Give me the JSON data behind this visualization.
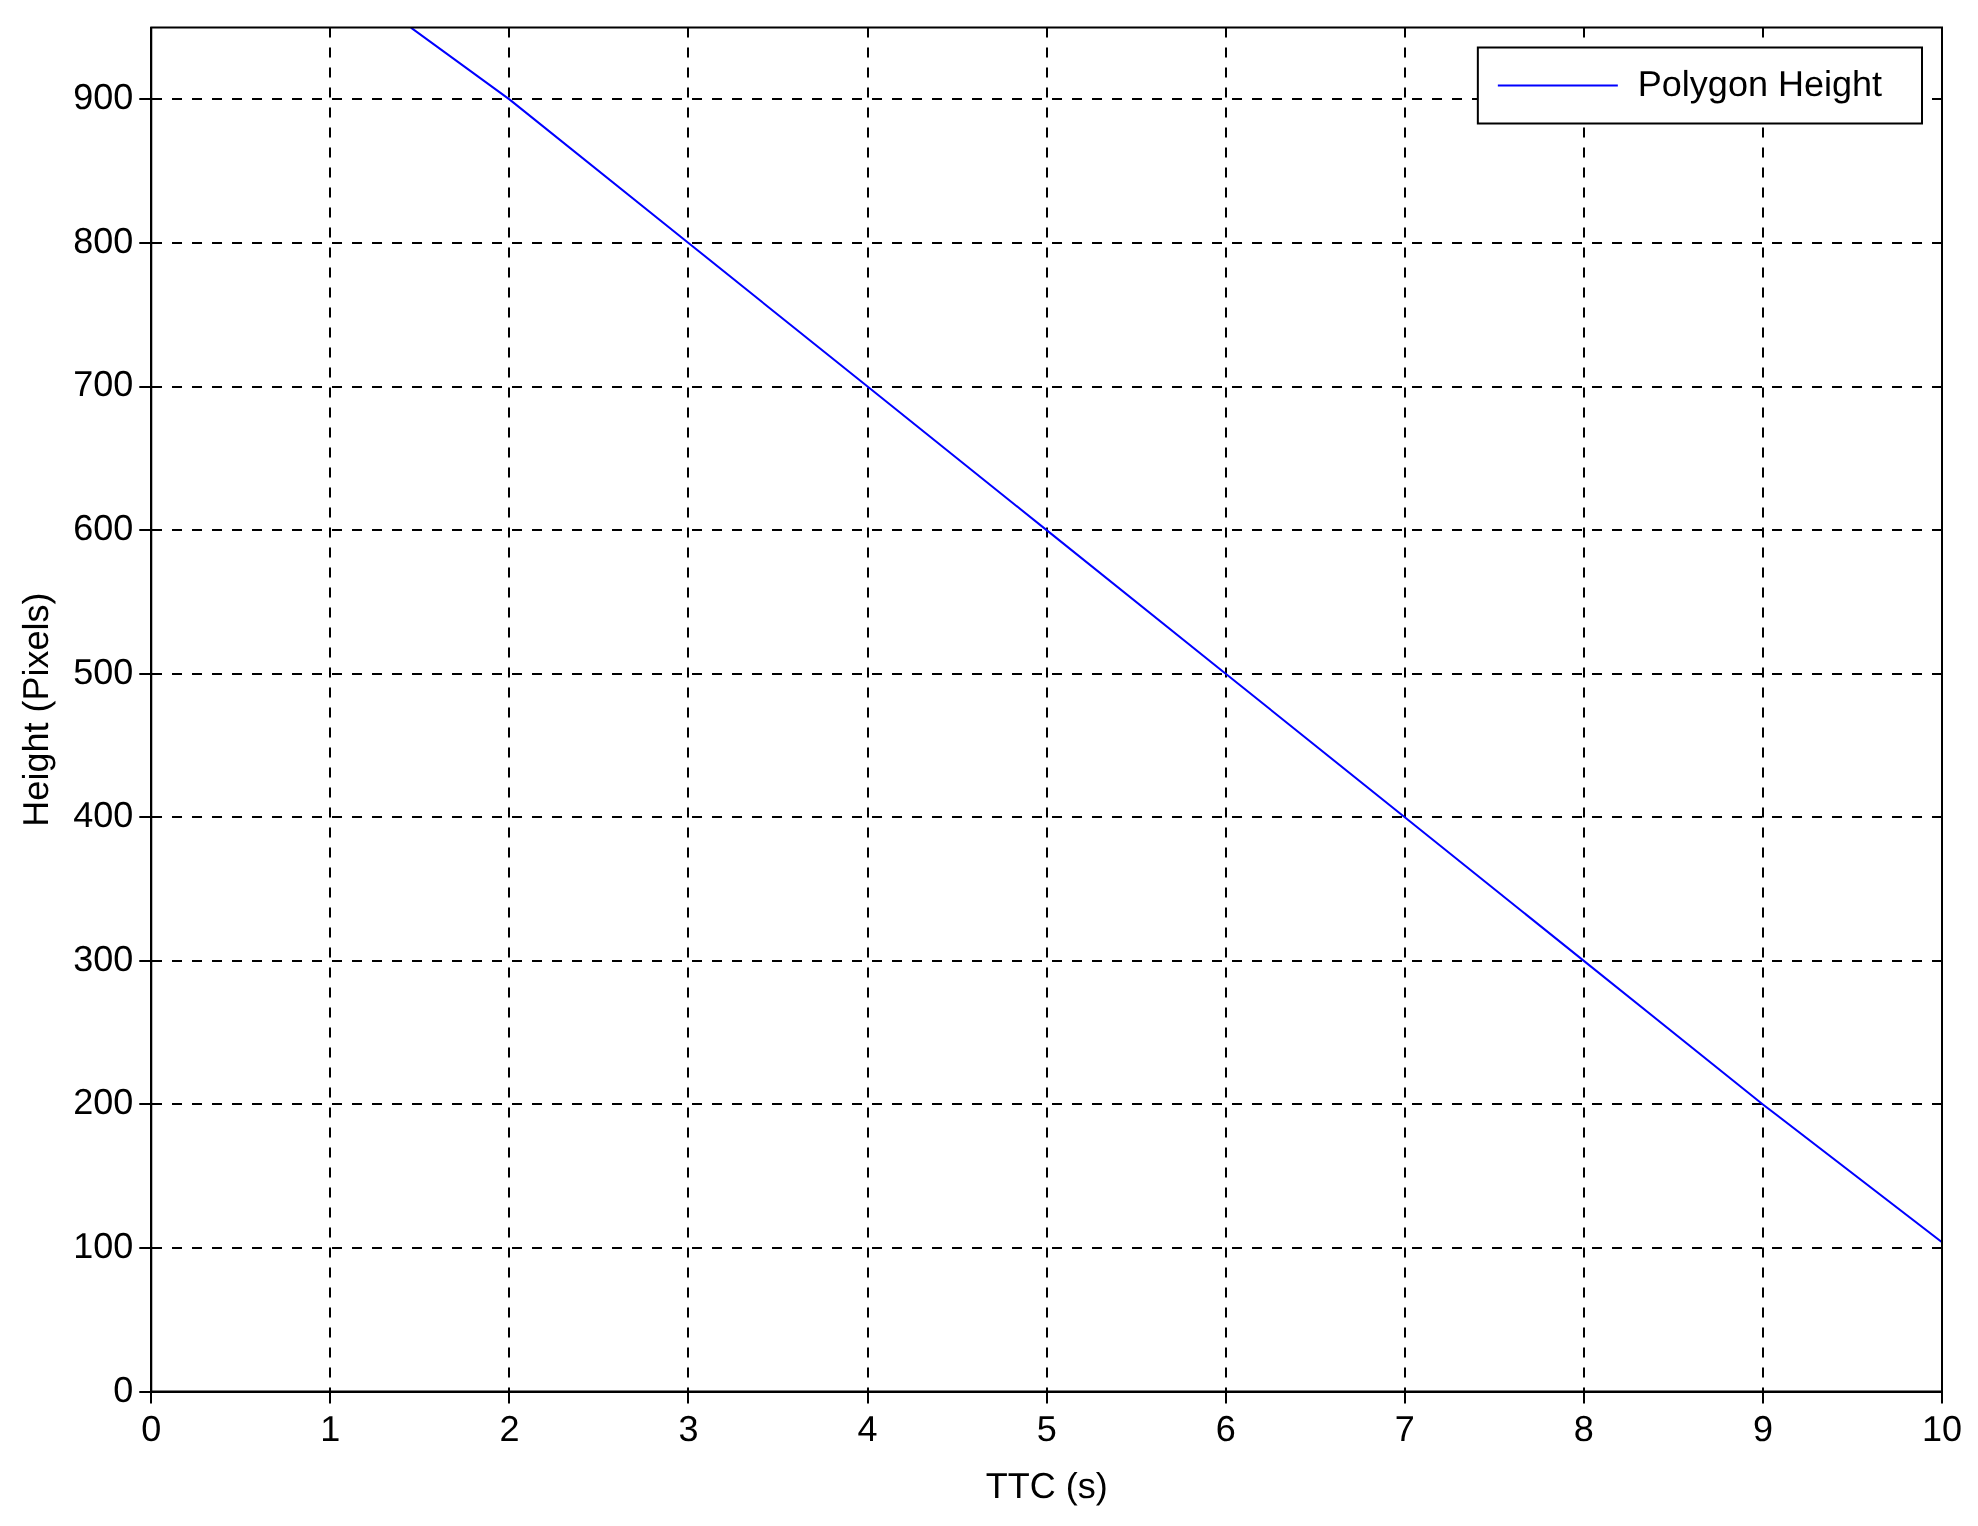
{
  "chart_data": {
    "type": "line",
    "xlabel": "TTC (s)",
    "ylabel": "Height (Pixels)",
    "x": [
      1.45,
      2,
      3,
      4,
      5,
      6,
      7,
      8,
      9,
      10
    ],
    "series": [
      {
        "name": "Polygon Height",
        "color": "#0000ff",
        "values": [
          950,
          900,
          800,
          700,
          600,
          500,
          400,
          300,
          200,
          104
        ]
      }
    ],
    "xlim": [
      0,
      10
    ],
    "xticks": [
      0,
      1,
      2,
      3,
      4,
      5,
      6,
      7,
      8,
      9,
      10
    ],
    "ylim": [
      0,
      950
    ],
    "yticks": [
      0,
      100,
      200,
      300,
      400,
      500,
      600,
      700,
      800,
      900
    ],
    "grid": true,
    "legend": "top right",
    "marker": "none",
    "line_style": "solid"
  }
}
